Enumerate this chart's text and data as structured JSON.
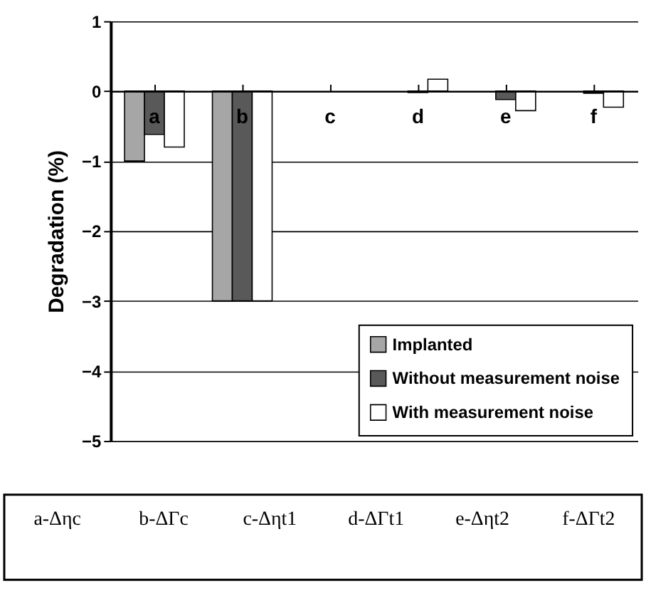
{
  "chart_data": {
    "type": "bar",
    "ylabel": "Degradation (%)",
    "categories": [
      "a",
      "b",
      "c",
      "d",
      "e",
      "f"
    ],
    "series": [
      {
        "name": "Implanted",
        "color": "#a6a6a6",
        "values": [
          -1,
          -3,
          0,
          0,
          0,
          0
        ]
      },
      {
        "name": "Without measurement noise",
        "color": "#595959",
        "values": [
          -0.62,
          -3,
          0,
          -0.02,
          -0.12,
          -0.03
        ]
      },
      {
        "name": "With measurement noise",
        "color": "#ffffff",
        "values": [
          -0.8,
          -3,
          0,
          0.17,
          -0.28,
          -0.23
        ]
      }
    ],
    "ylim": [
      -5,
      1
    ],
    "yticks": [
      -5,
      -4,
      -3,
      -2,
      -1,
      0,
      1
    ],
    "grid": "y",
    "legend": "bottom right",
    "annotations": [
      "a-Δηc",
      "b-ΔΓc",
      "c-Δηt1",
      "d-ΔΓt1",
      "e-Δηt2",
      "f-ΔΓt2"
    ]
  }
}
